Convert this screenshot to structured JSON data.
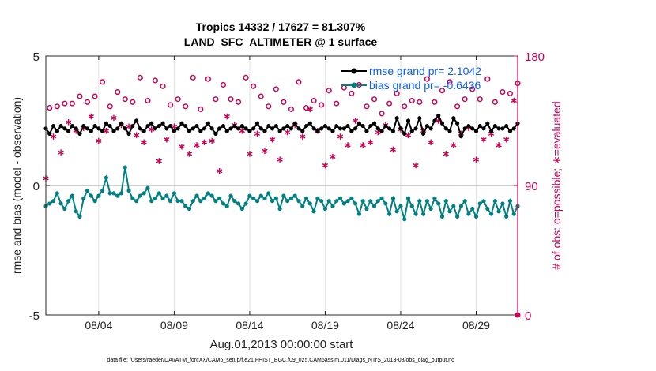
{
  "chart_data": {
    "type": "line",
    "title_line1": "Tropics 14332 / 17627 = 81.307%",
    "title_line2": "LAND_SFC_ALTIMETER @ 1 surface",
    "xlabel": "Aug.01,2013 00:00:00 start",
    "ylabel_left": "rmse and bias (model - observation)",
    "ylabel_right": "# of obs: o=possible; ∗=evaluated",
    "xlim_days": [
      0.5,
      31.75
    ],
    "ylim_left": [
      -5,
      5
    ],
    "ylim_right": [
      0,
      180
    ],
    "left_ticks": [
      "5",
      "0",
      "-5"
    ],
    "right_ticks": [
      "180",
      "90",
      "0"
    ],
    "x_ticks": [
      {
        "day": 4,
        "label": "08/04"
      },
      {
        "day": 9,
        "label": "08/09"
      },
      {
        "day": 14,
        "label": "08/14"
      },
      {
        "day": 19,
        "label": "08/19"
      },
      {
        "day": 24,
        "label": "08/24"
      },
      {
        "day": 29,
        "label": "08/29"
      }
    ],
    "series": [
      {
        "name": "rmse grand pr= 2.1042",
        "axis": "left",
        "color": "#000000",
        "start_day": 0.5,
        "step_days": 0.25,
        "values": [
          2.2,
          2.0,
          2.3,
          2.1,
          2.3,
          2.2,
          2.1,
          2.3,
          2.2,
          2.0,
          2.3,
          2.2,
          2.1,
          2.3,
          2.2,
          2.1,
          2.4,
          2.3,
          2.1,
          2.2,
          2.4,
          2.2,
          2.0,
          2.3,
          2.5,
          2.2,
          2.1,
          2.3,
          2.4,
          2.2,
          2.3,
          2.4,
          2.2,
          2.3,
          2.1,
          2.2,
          2.4,
          2.3,
          2.1,
          2.2,
          2.3,
          2.1,
          2.2,
          2.4,
          2.2,
          2.0,
          2.2,
          2.3,
          2.1,
          2.2,
          2.3,
          2.2,
          2.3,
          2.2,
          2.1,
          2.2,
          2.4,
          2.2,
          2.1,
          2.3,
          2.2,
          2.3,
          2.1,
          2.2,
          2.3,
          2.2,
          2.4,
          2.2,
          2.1,
          2.3,
          2.4,
          2.2,
          2.1,
          2.2,
          2.3,
          2.2,
          2.1,
          2.3,
          2.2,
          2.2,
          2.3,
          2.1,
          2.2,
          2.4,
          2.3,
          2.1,
          2.3,
          2.4,
          2.2,
          2.1,
          2.3,
          2.2,
          2.1,
          2.6,
          2.2,
          2.0,
          2.5,
          2.1,
          2.2,
          2.6,
          2.0,
          2.3,
          2.2,
          2.5,
          2.7,
          2.4,
          2.2,
          2.1,
          2.6,
          2.4,
          1.9,
          2.2,
          2.3,
          2.2,
          2.1,
          2.3,
          2.2,
          2.4,
          2.1,
          2.3,
          2.2,
          2.2,
          2.3,
          2.1,
          2.2,
          2.4,
          2.2,
          2.1,
          2.3,
          2.2,
          2.1,
          2.2,
          2.3,
          2.2,
          2.1,
          2.3,
          2.2,
          2.4,
          2.1,
          2.2,
          2.3,
          2.2,
          2.1,
          2.3,
          2.2,
          2.2,
          2.4,
          2.1,
          2.3,
          2.2,
          2.2,
          2.5,
          2.3,
          2.1,
          2.2,
          2.3,
          2.1,
          2.2,
          2.4,
          2.2,
          2.2,
          2.3,
          2.1,
          2.2,
          2.3,
          2.2,
          2.1,
          2.3,
          2.2,
          2.2,
          2.1,
          2.3,
          2.4,
          2.2,
          2.1,
          2.3,
          2.2,
          2.1,
          2.3,
          2.4,
          2.2,
          2.1,
          2.3,
          2.2,
          2.5,
          2.3,
          2.1,
          2.2,
          2.4,
          2.2,
          2.1,
          2.3,
          2.2,
          2.1,
          2.4,
          2.3,
          2.1,
          2.2,
          2.3,
          2.2,
          2.1,
          2.2,
          2.4,
          2.2,
          2.1,
          2.3,
          2.2,
          2.1,
          2.3,
          2.5,
          2.3,
          2.1,
          2.2,
          2.3,
          2.1,
          2.2,
          2.3,
          2.2,
          2.4,
          2.2,
          2.1,
          2.3,
          2.2,
          2.1,
          2.2,
          2.4,
          2.3,
          2.1,
          2.2,
          2.3,
          2.2,
          2.1,
          2.3,
          2.2,
          2.2,
          2.3,
          2.1,
          2.2,
          2.4,
          2.2,
          2.1,
          2.3,
          2.2,
          2.1,
          2.3,
          2.2,
          2.4,
          2.2,
          2.1,
          2.3,
          2.2,
          2.1,
          2.3,
          2.2,
          2.2,
          2.1,
          2.3,
          2.2,
          2.4,
          2.1,
          2.2,
          2.3,
          2.2,
          2.1,
          2.3,
          2.2,
          2.2,
          2.3,
          2.1,
          2.4,
          2.2,
          2.1,
          2.3,
          2.2,
          2.3,
          2.1,
          2.2,
          2.4,
          2.2,
          2.1,
          2.3,
          2.2,
          2.2,
          2.3,
          2.1,
          2.2,
          2.4,
          2.3,
          2.2,
          2.1,
          2.3,
          2.2,
          2.2,
          2.3,
          2.1,
          2.2,
          2.4,
          2.2,
          2.1,
          2.3,
          2.2,
          2.1,
          2.3,
          2.2,
          2.4,
          2.2,
          2.1,
          2.3,
          2.2,
          2.1,
          2.3,
          2.2,
          2.2,
          2.3,
          2.1,
          2.2,
          2.4,
          2.3,
          2.1,
          2.2,
          2.3,
          2.2,
          2.1,
          2.3,
          2.2,
          2.4,
          2.2,
          2.1,
          2.3,
          2.2,
          2.1,
          2.3,
          2.2,
          2.5,
          2.3,
          2.1,
          2.4,
          2.6,
          2.3,
          2.1,
          2.2,
          2.4,
          2.2,
          2.1,
          2.5,
          2.3,
          2.2,
          2.4,
          2.1,
          2.2,
          2.6,
          2.3,
          2.1,
          2.2,
          2.4,
          2.2,
          2.0,
          2.1,
          2.3,
          2.2,
          2.1,
          2.3,
          2.6,
          2.4,
          2.2,
          2.1,
          2.3,
          2.2,
          2.0,
          2.1,
          2.3,
          2.2,
          2.4,
          2.6,
          2.3,
          2.2,
          2.1,
          2.4,
          2.3,
          2.2,
          2.5,
          2.2,
          2.1,
          2.3,
          2.2,
          2.1,
          2.4,
          2.3,
          2.0,
          2.1,
          2.3,
          2.4,
          2.2,
          2.1,
          2.0,
          2.2,
          2.4,
          2.6,
          2.3,
          2.1,
          2.2,
          2.4,
          2.3,
          2.2,
          2.5,
          2.3,
          2.1,
          2.2,
          2.4,
          2.6,
          2.3,
          2.1,
          2.2,
          2.4,
          2.5,
          2.3,
          2.2,
          2.1,
          2.3,
          2.2,
          2.1,
          2.4,
          2.2,
          2.1,
          2.3,
          2.6,
          2.4,
          2.2,
          2.1
        ]
      },
      {
        "name": "bias grand pr= -0.6436",
        "axis": "left",
        "color": "#008080",
        "start_day": 0.5,
        "step_days": 0.25,
        "values": [
          -0.8,
          -0.7,
          -0.6,
          -0.3,
          -0.7,
          -0.9,
          -0.6,
          -0.4,
          -1.0,
          -1.2,
          -0.5,
          -0.2,
          -0.4,
          -0.6,
          -0.4,
          -0.2,
          0.3,
          -0.3,
          -0.3,
          -0.4,
          -0.3,
          0.7,
          -0.2,
          -0.5,
          -0.6,
          -0.4,
          -0.3,
          -0.1,
          -0.6,
          -0.5,
          -0.3,
          -0.5,
          -0.4,
          -0.6,
          -0.3,
          -0.6,
          -0.6,
          -0.8,
          -0.9,
          -0.6,
          -0.4,
          -0.6,
          -0.5,
          -0.3,
          -0.4,
          -0.6,
          -0.5,
          -0.7,
          -0.8,
          -0.4,
          -0.6,
          -0.7,
          -0.9,
          -0.7,
          -0.4,
          -0.5,
          -0.6,
          -0.4,
          -0.5,
          -0.3,
          -0.6,
          -0.5,
          -0.9,
          -0.4,
          -0.6,
          -0.5,
          -0.4,
          -0.6,
          -0.8,
          -0.5,
          -0.7,
          -1.0,
          -0.5,
          -0.6,
          -0.9,
          -0.6,
          -0.8,
          -0.6,
          -0.5,
          -0.7,
          -0.6,
          -0.5,
          -0.7,
          -1.1,
          -0.6,
          -0.9,
          -0.6,
          -0.8,
          -0.6,
          -0.5,
          -0.7,
          -1.1,
          -0.5,
          -1.0,
          -0.8,
          -1.3,
          -0.5,
          -0.8,
          -1.1,
          -0.6,
          -1.1,
          -0.6,
          -0.9,
          -0.5,
          -0.7,
          -1.2,
          -0.6,
          -1.0,
          -0.8,
          -1.2,
          -0.8,
          -0.6,
          -1.1,
          -0.9,
          -1.2,
          -0.7,
          -0.6,
          -0.9,
          -1.1,
          -0.6,
          -1.0,
          -0.7,
          -1.2,
          -0.6,
          -1.1,
          -0.8,
          -0.6,
          -1.0,
          -1.2,
          -0.6,
          -0.9,
          -1.0,
          -0.8,
          -0.6,
          -1.1,
          -0.9,
          -0.7,
          -0.5,
          -1.0,
          -0.8,
          -0.6,
          -0.9,
          -1.0,
          -0.7,
          -0.8,
          -1.1,
          -0.6,
          -0.8,
          -1.0,
          -0.7,
          -0.5,
          -0.9,
          -0.7,
          -0.6,
          -1.0,
          -0.8,
          -0.6,
          -0.9,
          -0.7,
          -0.5,
          -0.8,
          -1.0,
          -0.7,
          -0.6,
          -0.9,
          -0.8,
          -0.6,
          -1.0,
          -0.8,
          -0.7,
          -0.9,
          -0.6,
          -0.8,
          -1.0,
          -0.7,
          -0.6,
          -0.9,
          -0.8,
          -0.6,
          -0.9,
          -0.7,
          -1.0,
          -0.8,
          -0.6,
          -0.9,
          -0.8,
          -0.7,
          -0.9,
          -0.6,
          -0.8,
          -1.0,
          -0.7,
          -0.6,
          -0.9,
          -0.8,
          -0.6,
          -1.0,
          -0.8,
          -0.7,
          -0.9,
          -0.6,
          -0.8,
          -0.7,
          -0.9,
          -0.6,
          -0.8,
          -1.0,
          -0.7,
          -0.6,
          -0.9,
          -0.8,
          -0.6,
          -1.0,
          -0.8,
          -0.7,
          -0.9,
          -0.6,
          -0.8,
          -0.6,
          -0.9,
          -0.8,
          -0.7,
          -1.0,
          -0.6,
          -0.8,
          -0.9,
          -0.7,
          -0.6,
          -1.0,
          -0.8,
          -0.6,
          -0.9,
          -0.7,
          -0.8,
          -1.0,
          -0.6,
          -0.8,
          -0.9,
          -0.7,
          -1.1,
          -0.6,
          -0.9,
          -0.7,
          -0.8,
          -0.6,
          -1.0,
          -0.8,
          -0.7,
          -0.9,
          -0.6,
          -0.8,
          -1.0,
          -0.7,
          -0.9,
          -0.6,
          -0.8,
          -1.1,
          -0.7,
          -0.9,
          -0.6,
          -0.8,
          -1.0,
          -0.6,
          -0.9,
          -0.7,
          -0.8,
          -0.6,
          -1.0,
          -0.7,
          -0.9,
          -0.6,
          -0.8,
          -1.0,
          -0.7,
          -0.9,
          -0.6,
          -0.8,
          -1.1,
          -0.7,
          -0.9,
          -0.6,
          -0.8,
          -0.7,
          -1.0,
          -0.9,
          -0.6,
          -0.8,
          -0.7,
          -1.0,
          -0.8,
          -0.6,
          -0.9,
          -0.7,
          -0.6,
          -0.3,
          -0.2,
          -0.5,
          -0.3,
          -0.8,
          -0.4,
          -0.2,
          -0.6,
          -0.9,
          -1.0,
          -0.7,
          -0.5,
          -1.3,
          -0.7,
          -0.8,
          -0.6,
          -1.1,
          -1.0,
          -0.9,
          -0.8,
          -0.6,
          -0.9,
          -0.8,
          -1.2,
          -0.7,
          -0.5,
          -0.4,
          -0.6,
          -0.8,
          -0.5,
          -0.6,
          -0.9,
          -0.4,
          -0.7,
          -0.5,
          -0.9,
          -0.6,
          -0.8,
          -0.5,
          -0.4,
          -0.6,
          -0.5,
          -0.7,
          -1.0,
          -0.6,
          -0.4,
          -0.3,
          -0.5,
          -0.6,
          -0.8,
          -0.3,
          -0.9,
          -0.5,
          -0.4,
          -0.2,
          -0.6,
          -0.5,
          -0.3,
          -0.6,
          -0.4,
          -0.8,
          -0.2,
          -0.5,
          -0.9,
          -0.6,
          -0.4,
          -0.3,
          -0.5,
          -0.8,
          -0.6,
          -0.4,
          -0.5,
          -0.7,
          -0.6,
          -0.9,
          -0.5,
          -0.4,
          -0.7,
          -1.0,
          -0.6,
          -0.5,
          -0.3,
          -0.7,
          -0.4,
          -1.1,
          -0.6,
          -0.5,
          -0.7,
          -0.9,
          -0.6,
          -0.8,
          -0.5,
          -0.4,
          -0.7,
          -0.6,
          -0.9,
          -0.5,
          -0.8,
          -0.6,
          -0.7,
          -1.4,
          -0.6,
          -0.5
        ]
      },
      {
        "name": "possible",
        "axis": "right",
        "color": "#cc0055",
        "marker": "circle",
        "start_day": 0.75,
        "step_days": 0.5,
        "values": [
          144,
          145,
          147,
          147,
          152,
          148,
          152,
          162,
          145,
          155,
          150,
          148,
          165,
          149,
          163,
          159,
          146,
          150,
          145,
          165,
          143,
          164,
          150,
          160,
          150,
          148,
          165,
          159,
          152,
          145,
          157,
          148,
          143,
          162,
          144,
          149,
          146,
          156,
          147,
          158,
          154,
          160,
          145,
          150,
          140,
          147,
          154,
          145,
          149,
          148,
          164,
          148,
          156,
          162,
          145,
          150,
          157,
          150,
          164,
          148,
          155,
          154,
          161,
          152,
          145,
          156
        ]
      },
      {
        "name": "evaluated",
        "axis": "right",
        "color": "#cc0055",
        "marker": "asterisk",
        "start_day": 0.5,
        "step_days": 0.5,
        "values": [
          95,
          124,
          113,
          134,
          128,
          130,
          138,
          121,
          128,
          137,
          132,
          131,
          125,
          120,
          129,
          107,
          122,
          131,
          117,
          112,
          118,
          120,
          121,
          100,
          138,
          132,
          128,
          112,
          126,
          114,
          122,
          108,
          127,
          132,
          124,
          143,
          128,
          104,
          110,
          124,
          118,
          135,
          118,
          120,
          127,
          132,
          115,
          129,
          125,
          104,
          128,
          120,
          135,
          112,
          118,
          126,
          130,
          108,
          122,
          126,
          118,
          122,
          149,
          108,
          126,
          130
        ]
      }
    ],
    "legend_loc": "top-right"
  },
  "footer_text": "data file: /Users/raeder/DAI/ATM_forcXX/CAM6_setup/f.e21.FHIST_BGC.f09_025.CAM6assim.011/Diags_NTrS_2013-08/obs_diag_output.nc"
}
